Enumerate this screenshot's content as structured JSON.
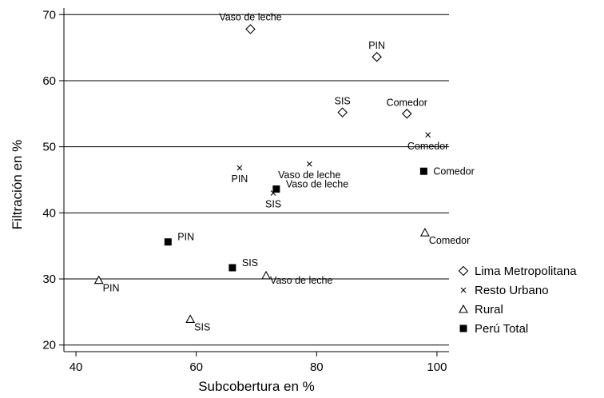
{
  "chart_data": {
    "type": "scatter",
    "xlabel": "Subcobertura en %",
    "ylabel": "Filtración en %",
    "xlim": [
      38,
      102
    ],
    "ylim": [
      19,
      71
    ],
    "xticks": [
      40,
      60,
      80,
      100
    ],
    "yticks": [
      20,
      30,
      40,
      50,
      60,
      70
    ],
    "grid": "horizontal",
    "legend_position": "right",
    "series": [
      {
        "name": "Lima Metropolitana",
        "marker": "diamond",
        "points": [
          {
            "x": 69.0,
            "y": 67.8,
            "label": "Vaso de leche"
          },
          {
            "x": 90.0,
            "y": 63.6,
            "label": "PIN"
          },
          {
            "x": 84.3,
            "y": 55.2,
            "label": "SIS"
          },
          {
            "x": 95.0,
            "y": 55.0,
            "label": "Comedor"
          }
        ]
      },
      {
        "name": "Resto Urbano",
        "marker": "x",
        "points": [
          {
            "x": 98.5,
            "y": 51.8,
            "label": "Comedor"
          },
          {
            "x": 67.2,
            "y": 46.8,
            "label": "PIN"
          },
          {
            "x": 78.8,
            "y": 47.4,
            "label": "Vaso de leche"
          },
          {
            "x": 72.8,
            "y": 43.0,
            "label": "SIS"
          }
        ]
      },
      {
        "name": "Rural",
        "marker": "triangle",
        "points": [
          {
            "x": 98.0,
            "y": 37.0,
            "label": "Comedor"
          },
          {
            "x": 71.6,
            "y": 30.5,
            "label": "Vaso de leche"
          },
          {
            "x": 43.8,
            "y": 29.8,
            "label": "PIN"
          },
          {
            "x": 59.0,
            "y": 23.9,
            "label": "SIS"
          }
        ]
      },
      {
        "name": "Perú Total",
        "marker": "square",
        "points": [
          {
            "x": 97.8,
            "y": 46.3,
            "label": "Comedor"
          },
          {
            "x": 73.3,
            "y": 43.6,
            "label": "Vaso de leche"
          },
          {
            "x": 55.3,
            "y": 35.6,
            "label": "PIN"
          },
          {
            "x": 66.0,
            "y": 31.7,
            "label": "SIS"
          }
        ]
      }
    ]
  }
}
